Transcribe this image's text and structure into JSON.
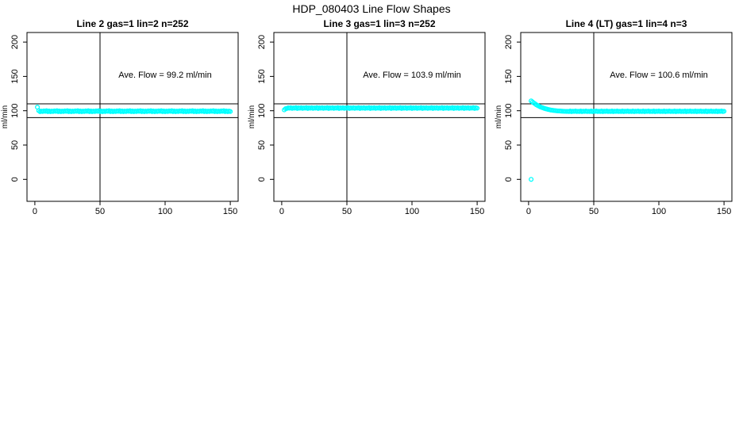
{
  "title": "HDP_080403  Line Flow Shapes",
  "colors": {
    "points": "#00FFFF",
    "axis": "#000000",
    "background": "#FFFFFF",
    "text": "#000000"
  },
  "chart_data": [
    {
      "type": "scatter",
      "title": "Line 2 gas=1 lin=2 n=252",
      "ylabel": "ml/min",
      "annotation": "Ave. Flow =  99.2  ml/min",
      "ave_flow": 99.2,
      "n": 252,
      "xticks": [
        0,
        50,
        100,
        150
      ],
      "yticks": [
        0,
        50,
        100,
        150,
        200
      ],
      "x_range": [
        -6,
        156
      ],
      "y_range": [
        -32,
        214
      ],
      "hlines": [
        90,
        110
      ],
      "vlines": [
        50
      ],
      "grid": false,
      "legend": null,
      "points": {
        "x": [
          2,
          3,
          4,
          5,
          6,
          7,
          8,
          9,
          10,
          11,
          12,
          13,
          14,
          15,
          16,
          17,
          18,
          19,
          20,
          21,
          22,
          23,
          24,
          25,
          26,
          27,
          28,
          29,
          30,
          31,
          32,
          33,
          34,
          35,
          36,
          37,
          38,
          39,
          40,
          41,
          42,
          43,
          44,
          45,
          46,
          47,
          48,
          49,
          50,
          51,
          52,
          53,
          54,
          55,
          56,
          57,
          58,
          59,
          60,
          61,
          62,
          63,
          64,
          65,
          66,
          67,
          68,
          69,
          70,
          71,
          72,
          73,
          74,
          75,
          76,
          77,
          78,
          79,
          80,
          81,
          82,
          83,
          84,
          85,
          86,
          87,
          88,
          89,
          90,
          91,
          92,
          93,
          94,
          95,
          96,
          97,
          98,
          99,
          100,
          101,
          102,
          103,
          104,
          105,
          106,
          107,
          108,
          109,
          110,
          111,
          112,
          113,
          114,
          115,
          116,
          117,
          118,
          119,
          120,
          121,
          122,
          123,
          124,
          125,
          126,
          127,
          128,
          129,
          130,
          131,
          132,
          133,
          134,
          135,
          136,
          137,
          138,
          139,
          140,
          141,
          142,
          143,
          144,
          145,
          146,
          147,
          148,
          149,
          150
        ],
        "y": [
          105.2,
          100.1,
          98.6,
          99.4,
          98.9,
          99.8,
          99.1,
          100.0,
          98.7,
          99.5,
          98.6,
          99.4,
          98.9,
          99.8,
          99.1,
          100.0,
          98.7,
          99.5,
          98.6,
          99.4,
          98.9,
          99.8,
          99.1,
          100.0,
          98.7,
          99.5,
          98.6,
          99.4,
          98.9,
          99.8,
          99.1,
          100.0,
          98.7,
          99.5,
          98.6,
          99.4,
          98.9,
          99.8,
          99.1,
          100.0,
          98.7,
          99.5,
          98.6,
          99.4,
          98.9,
          99.8,
          99.1,
          100.0,
          98.7,
          99.5,
          98.6,
          99.4,
          98.9,
          99.8,
          99.1,
          100.0,
          98.7,
          99.5,
          98.6,
          99.4,
          98.9,
          99.8,
          99.1,
          100.0,
          98.7,
          99.5,
          98.6,
          99.4,
          98.9,
          99.8,
          99.1,
          100.0,
          98.7,
          99.5,
          98.6,
          99.4,
          98.9,
          99.8,
          99.1,
          100.0,
          98.7,
          99.5,
          98.6,
          99.4,
          98.9,
          99.8,
          99.1,
          100.0,
          98.7,
          99.5,
          98.6,
          99.4,
          98.9,
          99.8,
          99.1,
          100.0,
          98.7,
          99.5,
          98.6,
          99.4,
          98.9,
          99.8,
          99.1,
          100.0,
          98.7,
          99.5,
          98.6,
          99.4,
          98.9,
          99.8,
          99.1,
          100.0,
          98.7,
          99.5,
          98.6,
          99.4,
          98.9,
          99.8,
          99.1,
          100.0,
          98.7,
          99.5,
          98.6,
          99.4,
          98.9,
          99.8,
          99.1,
          100.0,
          98.7,
          99.5,
          98.6,
          99.4,
          98.9,
          99.8,
          99.1,
          100.0,
          98.7,
          99.5,
          98.6,
          99.4,
          98.9,
          99.8,
          99.1,
          100.0,
          98.7,
          99.5,
          98.6,
          99.4,
          98.9
        ]
      }
    },
    {
      "type": "scatter",
      "title": "Line 3 gas=1 lin=3 n=252",
      "ylabel": "ml/min",
      "annotation": "Ave. Flow =  103.9  ml/min",
      "ave_flow": 103.9,
      "n": 252,
      "xticks": [
        0,
        50,
        100,
        150
      ],
      "yticks": [
        0,
        50,
        100,
        150,
        200
      ],
      "x_range": [
        -6,
        156
      ],
      "y_range": [
        -32,
        214
      ],
      "hlines": [
        90,
        110
      ],
      "vlines": [
        50
      ],
      "grid": false,
      "legend": null,
      "points": {
        "x": [
          2,
          3,
          4,
          5,
          6,
          7,
          8,
          9,
          10,
          11,
          12,
          13,
          14,
          15,
          16,
          17,
          18,
          19,
          20,
          21,
          22,
          23,
          24,
          25,
          26,
          27,
          28,
          29,
          30,
          31,
          32,
          33,
          34,
          35,
          36,
          37,
          38,
          39,
          40,
          41,
          42,
          43,
          44,
          45,
          46,
          47,
          48,
          49,
          50,
          51,
          52,
          53,
          54,
          55,
          56,
          57,
          58,
          59,
          60,
          61,
          62,
          63,
          64,
          65,
          66,
          67,
          68,
          69,
          70,
          71,
          72,
          73,
          74,
          75,
          76,
          77,
          78,
          79,
          80,
          81,
          82,
          83,
          84,
          85,
          86,
          87,
          88,
          89,
          90,
          91,
          92,
          93,
          94,
          95,
          96,
          97,
          98,
          99,
          100,
          101,
          102,
          103,
          104,
          105,
          106,
          107,
          108,
          109,
          110,
          111,
          112,
          113,
          114,
          115,
          116,
          117,
          118,
          119,
          120,
          121,
          122,
          123,
          124,
          125,
          126,
          127,
          128,
          129,
          130,
          131,
          132,
          133,
          134,
          135,
          136,
          137,
          138,
          139,
          140,
          141,
          142,
          143,
          144,
          145,
          146,
          147,
          148,
          149,
          150
        ],
        "y": [
          101.3,
          103.0,
          103.4,
          104.2,
          103.7,
          104.4,
          103.5,
          104.1,
          103.8,
          104.5,
          103.4,
          104.2,
          103.7,
          104.4,
          103.5,
          104.1,
          103.8,
          104.5,
          103.4,
          104.2,
          103.7,
          104.4,
          103.5,
          104.1,
          103.8,
          104.5,
          103.4,
          104.2,
          103.7,
          104.4,
          103.5,
          104.1,
          103.8,
          104.5,
          103.4,
          104.2,
          103.7,
          104.4,
          103.5,
          104.1,
          103.8,
          104.5,
          103.4,
          104.2,
          103.7,
          104.4,
          103.5,
          104.1,
          103.8,
          104.5,
          103.4,
          104.2,
          103.7,
          104.4,
          103.5,
          104.1,
          103.8,
          104.5,
          103.4,
          104.2,
          103.7,
          104.4,
          103.5,
          104.1,
          103.8,
          104.5,
          103.4,
          104.2,
          103.7,
          104.4,
          103.5,
          104.1,
          103.8,
          104.5,
          103.4,
          104.2,
          103.7,
          104.4,
          103.5,
          104.1,
          103.8,
          104.5,
          103.4,
          104.2,
          103.7,
          104.4,
          103.5,
          104.1,
          103.8,
          104.5,
          103.4,
          104.2,
          103.7,
          104.4,
          103.5,
          104.1,
          103.8,
          104.5,
          103.4,
          104.2,
          103.7,
          104.4,
          103.5,
          104.1,
          103.8,
          104.5,
          103.4,
          104.2,
          103.7,
          104.4,
          103.5,
          104.1,
          103.8,
          104.5,
          103.4,
          104.2,
          103.7,
          104.4,
          103.5,
          104.1,
          103.8,
          104.5,
          103.4,
          104.2,
          103.7,
          104.4,
          103.5,
          104.1,
          103.8,
          104.5,
          103.4,
          104.2,
          103.7,
          104.4,
          103.5,
          104.1,
          103.8,
          104.5,
          103.4,
          104.2,
          103.7,
          104.4,
          103.5,
          104.1,
          103.8,
          104.5,
          103.4,
          104.2,
          103.7
        ]
      }
    },
    {
      "type": "scatter",
      "title": "Line 4 (LT) gas=1 lin=4 n=3",
      "ylabel": "ml/min",
      "annotation": "Ave. Flow =  100.6  ml/min",
      "ave_flow": 100.6,
      "n": 3,
      "xticks": [
        0,
        50,
        100,
        150
      ],
      "yticks": [
        0,
        50,
        100,
        150,
        200
      ],
      "x_range": [
        -6,
        156
      ],
      "y_range": [
        -32,
        214
      ],
      "hlines": [
        90,
        110
      ],
      "vlines": [
        50
      ],
      "grid": false,
      "legend": null,
      "points": {
        "x": [
          2,
          3,
          4,
          5,
          6,
          7,
          8,
          9,
          10,
          11,
          12,
          13,
          14,
          15,
          16,
          17,
          18,
          19,
          20,
          21,
          22,
          23,
          24,
          25,
          26,
          27,
          28,
          29,
          30,
          31,
          32,
          33,
          34,
          35,
          36,
          37,
          38,
          39,
          40,
          41,
          42,
          43,
          44,
          45,
          46,
          47,
          48,
          49,
          50,
          51,
          52,
          53,
          54,
          55,
          56,
          57,
          58,
          59,
          60,
          61,
          62,
          63,
          64,
          65,
          66,
          67,
          68,
          69,
          70,
          71,
          72,
          73,
          74,
          75,
          76,
          77,
          78,
          79,
          80,
          81,
          82,
          83,
          84,
          85,
          86,
          87,
          88,
          89,
          90,
          91,
          92,
          93,
          94,
          95,
          96,
          97,
          98,
          99,
          100,
          101,
          102,
          103,
          104,
          105,
          106,
          107,
          108,
          109,
          110,
          111,
          112,
          113,
          114,
          115,
          116,
          117,
          118,
          119,
          120,
          121,
          122,
          123,
          124,
          125,
          126,
          127,
          128,
          129,
          130,
          131,
          132,
          133,
          134,
          135,
          136,
          137,
          138,
          139,
          140,
          141,
          142,
          143,
          144,
          145,
          146,
          147,
          148,
          149,
          150,
          2
        ],
        "y": [
          114.3,
          112.8,
          111.3,
          110.0,
          108.7,
          107.6,
          106.6,
          105.7,
          104.9,
          104.2,
          103.5,
          102.9,
          102.4,
          101.9,
          101.5,
          101.1,
          100.8,
          100.5,
          100.2,
          100.0,
          99.8,
          99.7,
          99.5,
          99.4,
          99.3,
          99.2,
          99.1,
          99.0,
          99.0,
          98.9,
          99.5,
          98.7,
          99.3,
          99.0,
          99.6,
          98.8,
          99.2,
          98.9,
          99.5,
          98.7,
          99.3,
          99.0,
          99.6,
          98.8,
          99.2,
          98.9,
          99.5,
          98.7,
          99.3,
          99.0,
          99.6,
          98.8,
          99.2,
          98.9,
          99.5,
          98.7,
          99.3,
          99.0,
          99.6,
          98.8,
          99.2,
          98.9,
          99.5,
          98.7,
          99.3,
          99.0,
          99.6,
          98.8,
          99.2,
          98.9,
          99.5,
          98.7,
          99.3,
          99.0,
          99.6,
          98.8,
          99.2,
          98.9,
          99.5,
          98.7,
          99.3,
          99.0,
          99.6,
          98.8,
          99.2,
          98.9,
          99.5,
          98.7,
          99.3,
          99.0,
          99.6,
          98.8,
          99.2,
          98.9,
          99.5,
          98.7,
          99.3,
          99.0,
          99.6,
          98.8,
          99.2,
          98.9,
          99.5,
          98.7,
          99.3,
          99.0,
          99.6,
          98.8,
          99.2,
          98.9,
          99.5,
          98.7,
          99.3,
          99.0,
          99.6,
          98.8,
          99.2,
          98.9,
          99.5,
          98.7,
          99.3,
          99.0,
          99.6,
          98.8,
          99.2,
          98.9,
          99.5,
          98.7,
          99.3,
          99.0,
          99.6,
          98.8,
          99.2,
          98.9,
          99.5,
          98.7,
          99.3,
          99.0,
          99.6,
          98.8,
          99.2,
          98.9,
          99.5,
          98.7,
          99.3,
          99.0,
          99.6,
          98.8,
          99.2,
          0
        ]
      }
    }
  ]
}
